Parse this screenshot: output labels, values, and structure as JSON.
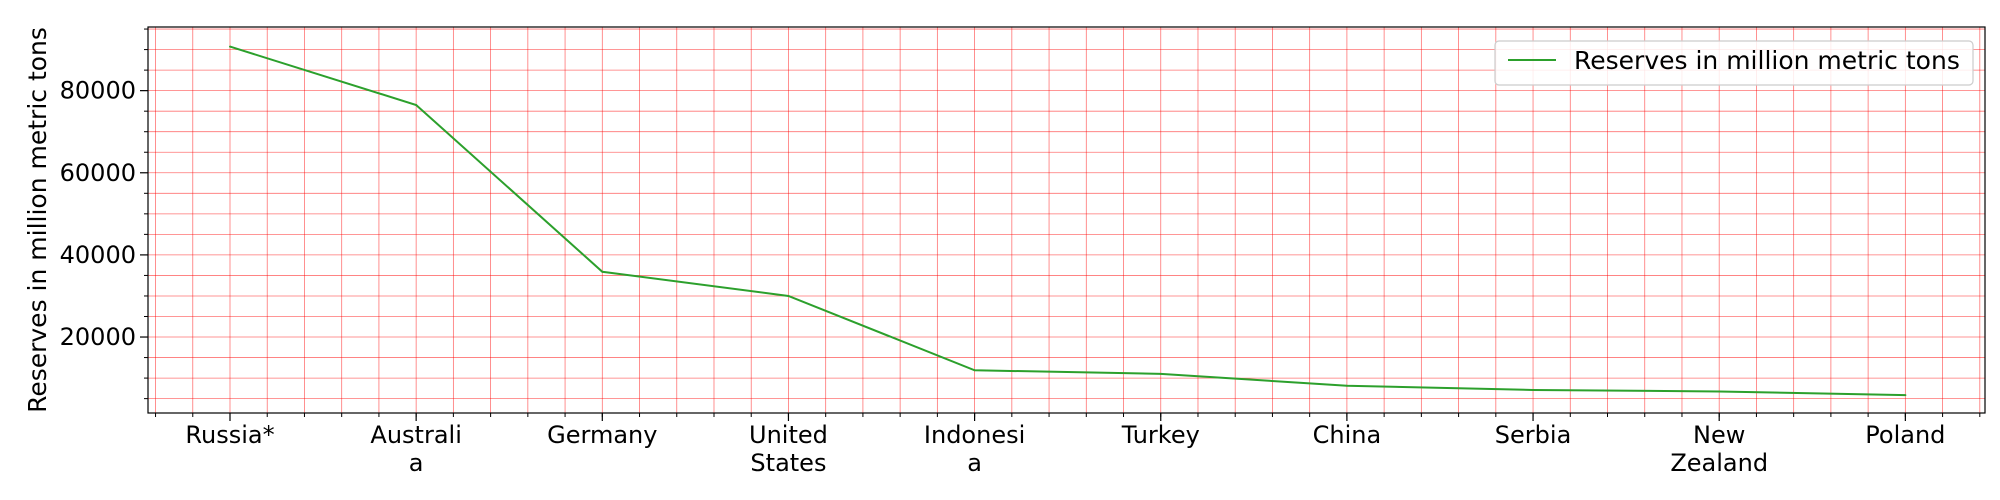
{
  "chart_data": {
    "type": "line",
    "categories": [
      "Russia*",
      "Australia",
      "Germany",
      "United States",
      "Indonesia",
      "Turkey",
      "China",
      "Serbia",
      "New Zealand",
      "Poland"
    ],
    "category_label_lines": [
      [
        "Russia*"
      ],
      [
        "Australi",
        "a"
      ],
      [
        "Germany"
      ],
      [
        "United",
        "States"
      ],
      [
        "Indonesi",
        "a"
      ],
      [
        "Turkey"
      ],
      [
        "China"
      ],
      [
        "Serbia"
      ],
      [
        "New",
        "Zealand"
      ],
      [
        "Poland"
      ]
    ],
    "series": [
      {
        "name": "Reserves in million metric tons",
        "color": "#2ca02c",
        "values": [
          90730,
          76508,
          35900,
          30003,
          11910,
          11035,
          8128,
          7112,
          6750,
          5865
        ]
      }
    ],
    "ylabel": "Reserves in million metric tons",
    "xlabel": "",
    "ylim": [
      1500,
      95500
    ],
    "yticks": [
      20000,
      40000,
      60000,
      80000
    ],
    "grid": true,
    "grid_color": "#ff0000",
    "legend_position": "top-right"
  }
}
